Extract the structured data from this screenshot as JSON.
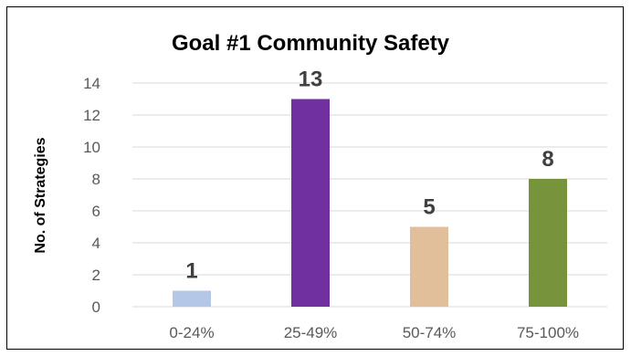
{
  "chart_data": {
    "type": "bar",
    "title": "Goal #1 Community Safety",
    "xlabel": "",
    "ylabel": "No. of Strategies",
    "categories": [
      "0-24%",
      "25-49%",
      "50-74%",
      "75-100%"
    ],
    "values": [
      1,
      13,
      5,
      8
    ],
    "data_labels": [
      "1",
      "13",
      "5",
      "8"
    ],
    "bar_colors": [
      "#b4c7e7",
      "#7030a0",
      "#e2bf9b",
      "#77933c"
    ],
    "ylim": [
      0,
      14
    ],
    "yticks": [
      0,
      2,
      4,
      6,
      8,
      10,
      12,
      14
    ],
    "grid": true,
    "legend": "none"
  }
}
